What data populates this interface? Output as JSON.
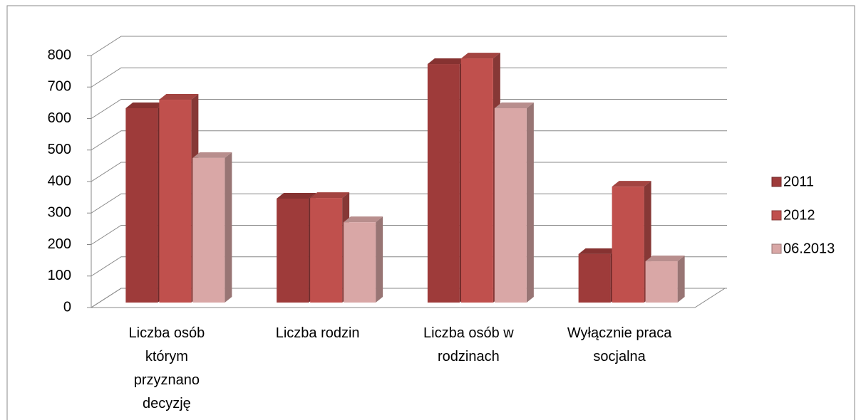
{
  "chart_data": {
    "type": "bar3d",
    "categories": [
      "Liczba osób którym przyznano decyzję",
      "Liczba rodzin",
      "Liczba osób w rodzinach",
      "Wyłącznie praca socjalna"
    ],
    "series": [
      {
        "name": "2011",
        "color": "#9e3b3a",
        "values": [
          617,
          330,
          757,
          154
        ]
      },
      {
        "name": "2012",
        "color": "#c0504d",
        "values": [
          644,
          332,
          775,
          368
        ]
      },
      {
        "name": "06.2013",
        "color": "#d9a7a6",
        "values": [
          459,
          255,
          617,
          131
        ]
      }
    ],
    "ylim": [
      0,
      800
    ],
    "yticks": [
      0,
      100,
      200,
      300,
      400,
      500,
      600,
      700,
      800
    ],
    "grid": true,
    "legend": "right"
  }
}
